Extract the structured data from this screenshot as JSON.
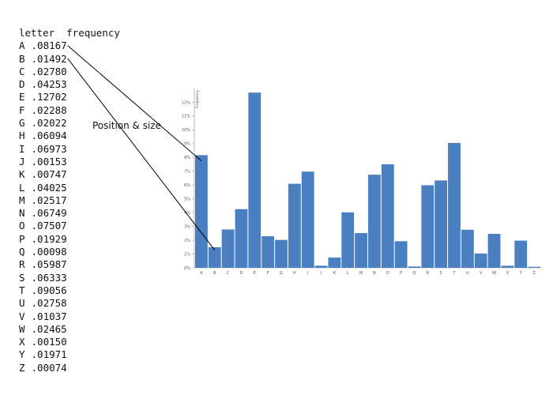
{
  "table": {
    "header_letter": "letter",
    "header_frequency": "frequency",
    "rows": [
      {
        "letter": "A",
        "frequency": ".08167"
      },
      {
        "letter": "B",
        "frequency": ".01492"
      },
      {
        "letter": "C",
        "frequency": ".02780"
      },
      {
        "letter": "D",
        "frequency": ".04253"
      },
      {
        "letter": "E",
        "frequency": ".12702"
      },
      {
        "letter": "F",
        "frequency": ".02288"
      },
      {
        "letter": "G",
        "frequency": ".02022"
      },
      {
        "letter": "H",
        "frequency": ".06094"
      },
      {
        "letter": "I",
        "frequency": ".06973"
      },
      {
        "letter": "J",
        "frequency": ".00153"
      },
      {
        "letter": "K",
        "frequency": ".00747"
      },
      {
        "letter": "L",
        "frequency": ".04025"
      },
      {
        "letter": "M",
        "frequency": ".02517"
      },
      {
        "letter": "N",
        "frequency": ".06749"
      },
      {
        "letter": "O",
        "frequency": ".07507"
      },
      {
        "letter": "P",
        "frequency": ".01929"
      },
      {
        "letter": "Q",
        "frequency": ".00098"
      },
      {
        "letter": "R",
        "frequency": ".05987"
      },
      {
        "letter": "S",
        "frequency": ".06333"
      },
      {
        "letter": "T",
        "frequency": ".09056"
      },
      {
        "letter": "U",
        "frequency": ".02758"
      },
      {
        "letter": "V",
        "frequency": ".01037"
      },
      {
        "letter": "W",
        "frequency": ".02465"
      },
      {
        "letter": "X",
        "frequency": ".00150"
      },
      {
        "letter": "Y",
        "frequency": ".01971"
      },
      {
        "letter": "Z",
        "frequency": ".00074"
      }
    ]
  },
  "annotation": {
    "label": "Position & size",
    "points_from_rows": [
      "A",
      "B"
    ]
  },
  "colors": {
    "bar": "#4a7fc1",
    "bar_stroke": "#ffffff",
    "axis": "#888888",
    "annotation_line": "#000000"
  },
  "chart_data": {
    "type": "bar",
    "categories": [
      "A",
      "B",
      "C",
      "D",
      "E",
      "F",
      "G",
      "H",
      "I",
      "J",
      "K",
      "L",
      "M",
      "N",
      "O",
      "P",
      "Q",
      "R",
      "S",
      "T",
      "U",
      "V",
      "W",
      "X",
      "Y",
      "Z"
    ],
    "values": [
      0.08167,
      0.01492,
      0.0278,
      0.04253,
      0.12702,
      0.02288,
      0.02022,
      0.06094,
      0.06973,
      0.00153,
      0.00747,
      0.04025,
      0.02517,
      0.06749,
      0.07507,
      0.01929,
      0.00098,
      0.05987,
      0.06333,
      0.09056,
      0.02758,
      0.01037,
      0.02465,
      0.0015,
      0.01971,
      0.00074
    ],
    "ylim": [
      0,
      0.13
    ],
    "yticks": [
      "0%",
      "1%",
      "2%",
      "3%",
      "4%",
      "5%",
      "6%",
      "7%",
      "8%",
      "9%",
      "10%",
      "11%",
      "12%"
    ],
    "ylabel": "Frequency",
    "xlabel": "",
    "title": "",
    "grid": false,
    "legend": "none"
  }
}
